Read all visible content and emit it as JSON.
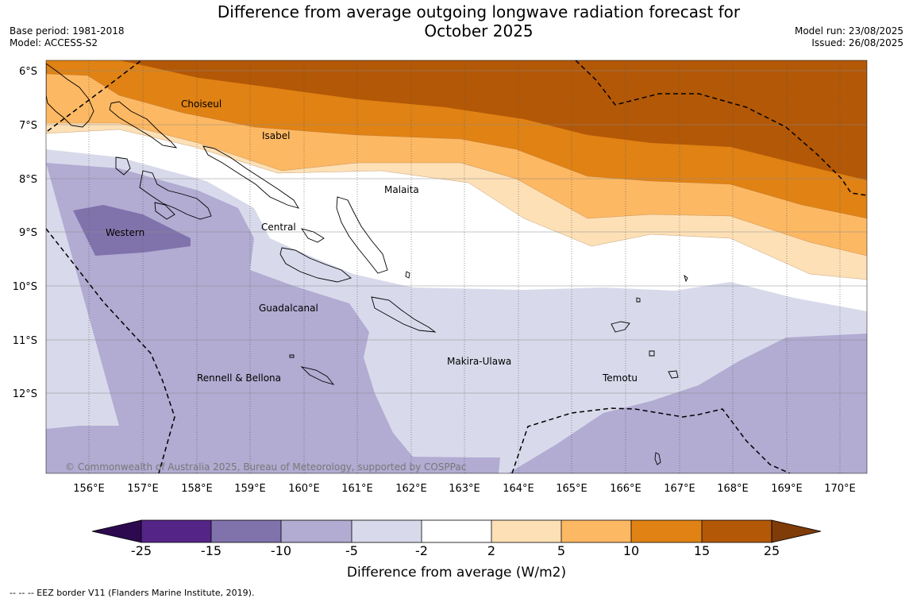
{
  "title_line1": "Difference from average outgoing longwave radiation forecast for",
  "title_line2": "October 2025",
  "meta": {
    "base_period": "Base period: 1981-2018",
    "model": "Model: ACCESS-S2",
    "model_run": "Model run: 23/08/2025",
    "issued": "Issued: 26/08/2025"
  },
  "map": {
    "lat_labels": [
      "6°S",
      "7°S",
      "8°S",
      "9°S",
      "10°S",
      "11°S",
      "12°S"
    ],
    "lon_labels": [
      "156°E",
      "157°E",
      "158°E",
      "159°E",
      "160°E",
      "161°E",
      "162°E",
      "163°E",
      "164°E",
      "165°E",
      "166°E",
      "167°E",
      "168°E",
      "169°E",
      "170°E"
    ],
    "province_labels": [
      "Choiseul",
      "Isabel",
      "Malaita",
      "Western",
      "Central",
      "Guadalcanal",
      "Makira-Ulawa",
      "Rennell & Bellona",
      "Temotu"
    ],
    "copyright": "© Commonwealth of Australia 2025, Bureau of Meteorology, supported by COSPPac"
  },
  "colorbar": {
    "ticks": [
      "-25",
      "-15",
      "-10",
      "-5",
      "-2",
      "2",
      "5",
      "10",
      "15",
      "25"
    ],
    "label": "Difference from average (W/m2)",
    "colors": [
      "#2d0a4f",
      "#542487",
      "#8073ac",
      "#b2abd2",
      "#d8daeb",
      "#ffffff",
      "#fee0b6",
      "#fdb863",
      "#e08214",
      "#b35806",
      "#7f3b08"
    ]
  },
  "footer": "--  --  -- EEZ border V11 (Flanders Marine Institute, 2019)."
}
